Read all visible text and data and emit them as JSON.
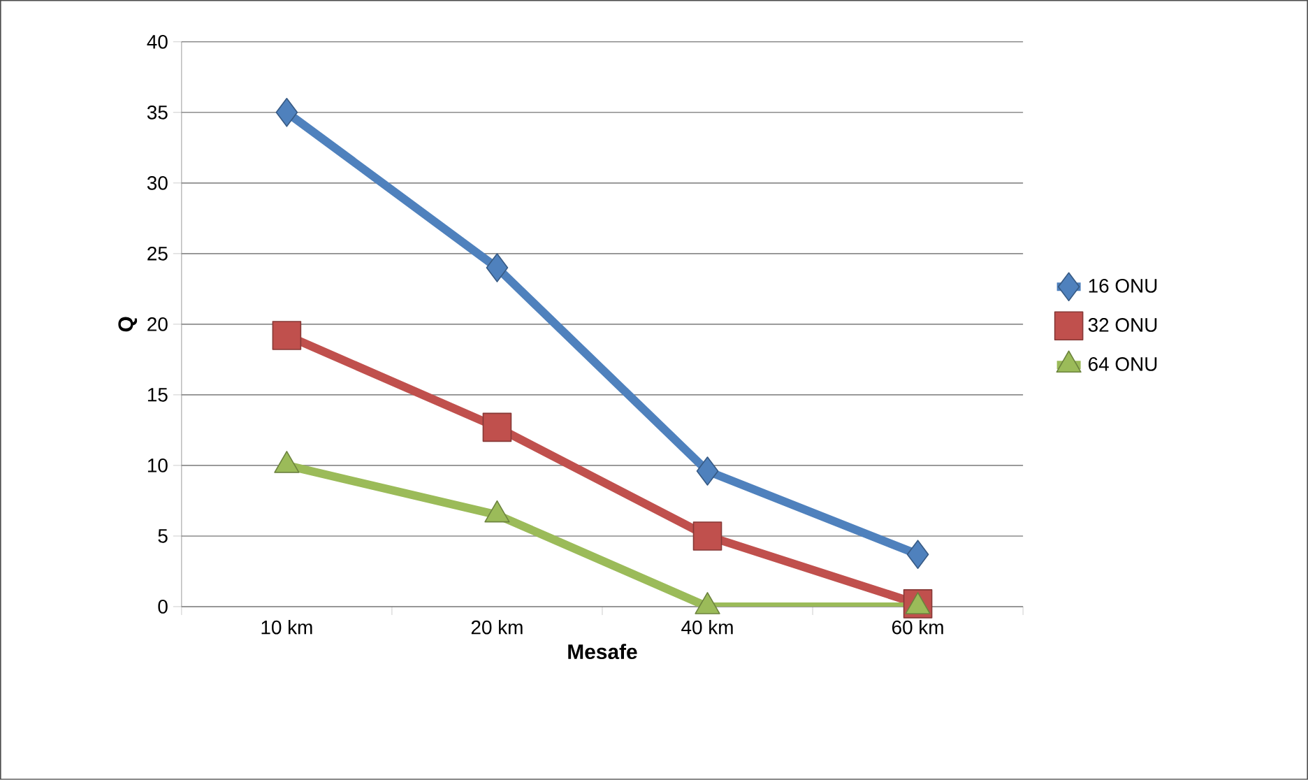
{
  "chart_data": {
    "type": "line",
    "xlabel": "Mesafe",
    "ylabel": "Q",
    "categories": [
      "10 km",
      "20 km",
      "40 km",
      "60 km"
    ],
    "series": [
      {
        "name": "16 ONU",
        "color": "#4f81bd",
        "marker": "diamond",
        "values": [
          35,
          24,
          9.6,
          3.7
        ]
      },
      {
        "name": "32 ONU",
        "color": "#c0504d",
        "marker": "square",
        "values": [
          19.2,
          12.7,
          5,
          0.2
        ]
      },
      {
        "name": "64 ONU",
        "color": "#9bbb59",
        "marker": "triangle",
        "values": [
          10,
          6.5,
          0,
          0
        ]
      }
    ],
    "ylim": [
      0,
      40
    ],
    "yticks": [
      0,
      5,
      10,
      15,
      20,
      25,
      30,
      35,
      40
    ],
    "grid": "y",
    "legend": "right",
    "line_style": "solid"
  }
}
